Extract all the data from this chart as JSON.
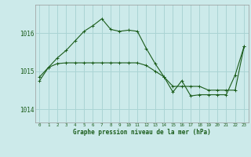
{
  "title": "Graphe pression niveau de la mer (hPa)",
  "background_color": "#cceaea",
  "grid_color": "#aad4d4",
  "line_color": "#1a5c1a",
  "x_labels": [
    "0",
    "1",
    "2",
    "3",
    "4",
    "5",
    "6",
    "7",
    "8",
    "9",
    "10",
    "11",
    "12",
    "13",
    "14",
    "15",
    "16",
    "17",
    "18",
    "19",
    "20",
    "21",
    "22",
    "23"
  ],
  "y_ticks": [
    1014,
    1015,
    1016
  ],
  "ylim": [
    1013.65,
    1016.75
  ],
  "series1": [
    1014.85,
    1015.1,
    1015.2,
    1015.22,
    1015.22,
    1015.22,
    1015.22,
    1015.22,
    1015.22,
    1015.22,
    1015.22,
    1015.22,
    1015.15,
    1015.0,
    1014.85,
    1014.6,
    1014.6,
    1014.6,
    1014.6,
    1014.5,
    1014.5,
    1014.5,
    1014.5,
    1015.65
  ],
  "series2": [
    1014.75,
    1015.1,
    1015.35,
    1015.55,
    1015.8,
    1016.05,
    1016.2,
    1016.38,
    1016.1,
    1016.05,
    1016.08,
    1016.05,
    1015.6,
    1015.2,
    1014.85,
    1014.45,
    1014.75,
    1014.35,
    1014.38,
    1014.38,
    1014.38,
    1014.38,
    1014.9,
    1015.65
  ]
}
